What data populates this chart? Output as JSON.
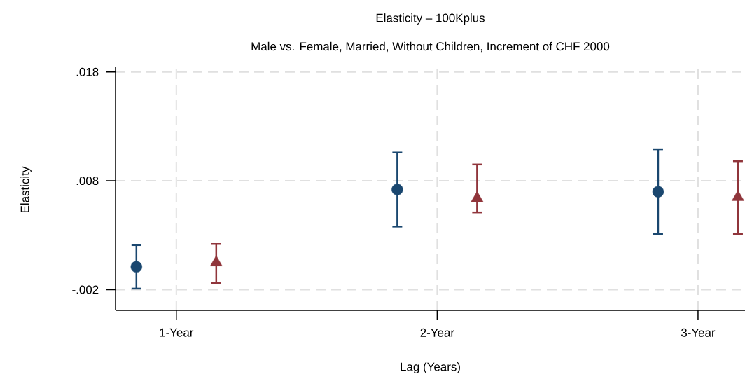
{
  "chart_data": {
    "type": "scatter",
    "title": "Elasticity – 100Kplus",
    "subtitle": "Male vs. Female, Married, Without Children, Increment of CHF 2000",
    "xlabel": "Lag (Years)",
    "ylabel": "Elasticity",
    "categories": [
      "1-Year",
      "2-Year",
      "3-Year"
    ],
    "ylim": [
      -0.0039,
      0.0185
    ],
    "yticks": [
      {
        "value": -0.002,
        "label": "-.002"
      },
      {
        "value": 0.008,
        "label": ".008"
      },
      {
        "value": 0.018,
        "label": ".018"
      }
    ],
    "grid": true,
    "series": [
      {
        "color": "#1a476f",
        "marker": "circle",
        "values": [
          0.0001,
          0.0072,
          0.007
        ],
        "errors": [
          [
            -0.0019,
            0.0021
          ],
          [
            0.0038,
            0.0106
          ],
          [
            0.0031,
            0.0109
          ]
        ]
      },
      {
        "color": "#90353b",
        "marker": "triangle",
        "values": [
          0.0005,
          0.0064,
          0.0065
        ],
        "errors": [
          [
            -0.0014,
            0.0022
          ],
          [
            0.0051,
            0.0095
          ],
          [
            0.0031,
            0.0098
          ]
        ]
      }
    ]
  }
}
